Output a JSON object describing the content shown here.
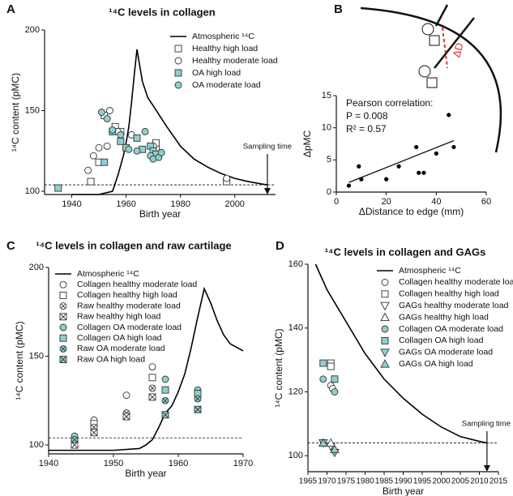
{
  "chart_data": [
    {
      "type": "scatter",
      "panel": "A",
      "title": "¹⁴C levels in collagen",
      "xlabel": "Birth year",
      "ylabel": "¹⁴C content (pMC)",
      "xlim": [
        1930,
        2015
      ],
      "ylim": [
        98,
        200
      ],
      "xticks": [
        1940,
        1960,
        1980,
        2000
      ],
      "yticks": [
        100,
        150,
        200
      ],
      "legend": "upper right",
      "hline": 104,
      "annotation": {
        "text": "Sampling time",
        "x": 2012
      },
      "series": [
        {
          "name": "Atmospheric ¹⁴C",
          "style": "line",
          "color": "#000000",
          "x": [
            1940,
            1950,
            1955,
            1957,
            1959,
            1960,
            1961,
            1962,
            1963,
            1964,
            1965,
            1966,
            1968,
            1970,
            1975,
            1980,
            1985,
            1990,
            1995,
            2000,
            2005,
            2010,
            2012
          ],
          "values": [
            98,
            98,
            100,
            110,
            122,
            130,
            140,
            155,
            172,
            188,
            178,
            168,
            158,
            153,
            140,
            128,
            120,
            115,
            111,
            108,
            106,
            104.5,
            104
          ]
        },
        {
          "name": "Healthy high load",
          "marker": "square",
          "color": "#ffffff",
          "x": [
            1947,
            1950,
            1952,
            1956,
            1958,
            1971,
            1971,
            1997
          ],
          "values": [
            106,
            118,
            147,
            140,
            137,
            127,
            130,
            106
          ]
        },
        {
          "name": "Healthy moderate load",
          "marker": "circle",
          "color": "#ffffff",
          "x": [
            1946,
            1948,
            1950,
            1953,
            1954,
            1955,
            1957,
            1962,
            1970,
            1997
          ],
          "values": [
            113,
            122,
            127,
            128,
            150,
            137,
            137,
            135,
            128,
            108
          ]
        },
        {
          "name": "OA high load",
          "marker": "square",
          "color": "#8fcfcf",
          "x": [
            1935,
            1952,
            1955,
            1958,
            1960,
            1964,
            1966,
            1969,
            1970,
            1971
          ],
          "values": [
            102,
            118,
            137,
            131,
            127,
            133,
            126,
            128,
            125,
            123
          ]
        },
        {
          "name": "OA moderate load",
          "marker": "circle",
          "color": "#8fcfcf",
          "x": [
            1951,
            1953,
            1955,
            1958,
            1961,
            1964,
            1967,
            1969,
            1970,
            1972,
            1973
          ],
          "values": [
            149,
            145,
            138,
            135,
            126,
            125,
            137,
            122,
            120,
            121,
            124
          ]
        }
      ]
    },
    {
      "type": "scatter",
      "panel": "B",
      "xlabel": "ΔDistance to edge (mm)",
      "ylabel": "ΔpMC",
      "xlim": [
        0,
        60
      ],
      "ylim": [
        0,
        15
      ],
      "xticks": [
        0,
        20,
        40,
        60
      ],
      "yticks": [
        0,
        5,
        10,
        15
      ],
      "texts": [
        "Pearson correlation:",
        "P = 0.008",
        "R² = 0.57"
      ],
      "diagram_text": "ΔD",
      "fit": {
        "x": [
          5,
          47
        ],
        "values": [
          1.5,
          8
        ]
      },
      "series": [
        {
          "marker": "dot",
          "color": "#000000",
          "x": [
            5,
            9,
            10,
            20,
            25,
            32,
            33,
            35,
            40,
            45,
            47
          ],
          "values": [
            1,
            4,
            2,
            2,
            4,
            7,
            3,
            3,
            6,
            12,
            7
          ]
        }
      ]
    },
    {
      "type": "scatter",
      "panel": "C",
      "title": "¹⁴C levels in collagen and raw cartilage",
      "xlabel": "Birth year",
      "ylabel": "¹⁴C content (pMC)",
      "xlim": [
        1940,
        1970
      ],
      "ylim": [
        95,
        200
      ],
      "xticks": [
        1940,
        1950,
        1960,
        1970
      ],
      "yticks": [
        100,
        150,
        200
      ],
      "legend": "upper left",
      "hline": 104,
      "series": [
        {
          "name": "Atmospheric ¹⁴C",
          "style": "line",
          "color": "#000000",
          "x": [
            1940,
            1950,
            1954,
            1955,
            1956,
            1957,
            1958,
            1959,
            1960,
            1961,
            1962,
            1963,
            1964,
            1965,
            1966,
            1967,
            1968,
            1969,
            1970
          ],
          "values": [
            97,
            97,
            98,
            100,
            103,
            110,
            118,
            122,
            130,
            140,
            155,
            172,
            188,
            180,
            170,
            162,
            157,
            155,
            153
          ]
        },
        {
          "name": "Collagen healthy moderate load",
          "marker": "circle",
          "color": "#ffffff",
          "x": [
            1947,
            1952,
            1956
          ],
          "values": [
            114,
            128,
            144
          ]
        },
        {
          "name": "Collagen healthy high load",
          "marker": "square",
          "color": "#ffffff",
          "x": [
            1947,
            1956
          ],
          "values": [
            112,
            138
          ]
        },
        {
          "name": "Raw healthy moderate load",
          "marker": "circle-x",
          "color": "#ffffff",
          "x": [
            1944,
            1947,
            1952,
            1956
          ],
          "values": [
            102,
            110,
            118,
            132
          ]
        },
        {
          "name": "Raw healthy high load",
          "marker": "square-x",
          "color": "#ffffff",
          "x": [
            1944,
            1947,
            1952,
            1956
          ],
          "values": [
            100,
            107,
            116,
            127
          ]
        },
        {
          "name": "Collagen OA moderate load",
          "marker": "circle",
          "color": "#8fcfcf",
          "x": [
            1944,
            1958,
            1963
          ],
          "values": [
            105,
            137,
            131
          ]
        },
        {
          "name": "Collagen OA high load",
          "marker": "square",
          "color": "#8fcfcf",
          "x": [
            1958,
            1963
          ],
          "values": [
            131,
            129
          ]
        },
        {
          "name": "Raw OA moderate load",
          "marker": "circle-x",
          "color": "#8fcfcf",
          "x": [
            1944,
            1958,
            1963
          ],
          "values": [
            103,
            125,
            126
          ]
        },
        {
          "name": "Raw OA high load",
          "marker": "square-x",
          "color": "#8fcfcf",
          "x": [
            1958,
            1963
          ],
          "values": [
            117,
            120
          ]
        }
      ]
    },
    {
      "type": "scatter",
      "panel": "D",
      "title": "¹⁴C levels in collagen and GAGs",
      "xlabel": "Birth year",
      "ylabel": "¹⁴C content (pMC)",
      "xlim": [
        1965,
        2015
      ],
      "ylim": [
        95,
        160
      ],
      "xticks": [
        1965,
        1970,
        1975,
        1980,
        1985,
        1990,
        1995,
        2000,
        2005,
        2010,
        2015
      ],
      "yticks": [
        100,
        120,
        140,
        160
      ],
      "legend": "upper right",
      "hline": 104,
      "annotation": {
        "text": "Sampling time",
        "x": 2012
      },
      "series": [
        {
          "name": "Atmospheric ¹⁴C",
          "style": "line",
          "color": "#000000",
          "x": [
            1967,
            1970,
            1975,
            1980,
            1985,
            1990,
            1995,
            2000,
            2005,
            2010,
            2012
          ],
          "values": [
            160,
            152,
            142,
            132,
            124,
            118,
            113,
            109,
            106,
            104.5,
            104
          ]
        },
        {
          "name": "Collagen healthy moderate load",
          "marker": "circle",
          "color": "#ffffff",
          "x": [
            1971,
            1971.5
          ],
          "values": [
            122,
            121
          ]
        },
        {
          "name": "Collagen healthy high load",
          "marker": "square",
          "color": "#ffffff",
          "x": [
            1971,
            1971
          ],
          "values": [
            129,
            128
          ]
        },
        {
          "name": "GAGs healthy moderate load",
          "marker": "triangle-down",
          "color": "#ffffff",
          "x": [
            1971
          ],
          "values": [
            103
          ]
        },
        {
          "name": "GAGs healthy high load",
          "marker": "triangle-up",
          "color": "#ffffff",
          "x": [
            1971
          ],
          "values": [
            104
          ]
        },
        {
          "name": "Collagen OA moderate load",
          "marker": "circle",
          "color": "#8fcfcf",
          "x": [
            1969,
            1972
          ],
          "values": [
            124,
            120
          ]
        },
        {
          "name": "Collagen OA high load",
          "marker": "square",
          "color": "#8fcfcf",
          "x": [
            1969,
            1972
          ],
          "values": [
            129,
            124
          ]
        },
        {
          "name": "GAGs OA moderate load",
          "marker": "triangle-down",
          "color": "#8fcfcf",
          "x": [
            1969,
            1972
          ],
          "values": [
            104,
            101
          ]
        },
        {
          "name": "GAGs OA high load",
          "marker": "triangle-up",
          "color": "#8fcfcf",
          "x": [
            1969,
            1972
          ],
          "values": [
            104,
            102
          ]
        }
      ]
    }
  ]
}
